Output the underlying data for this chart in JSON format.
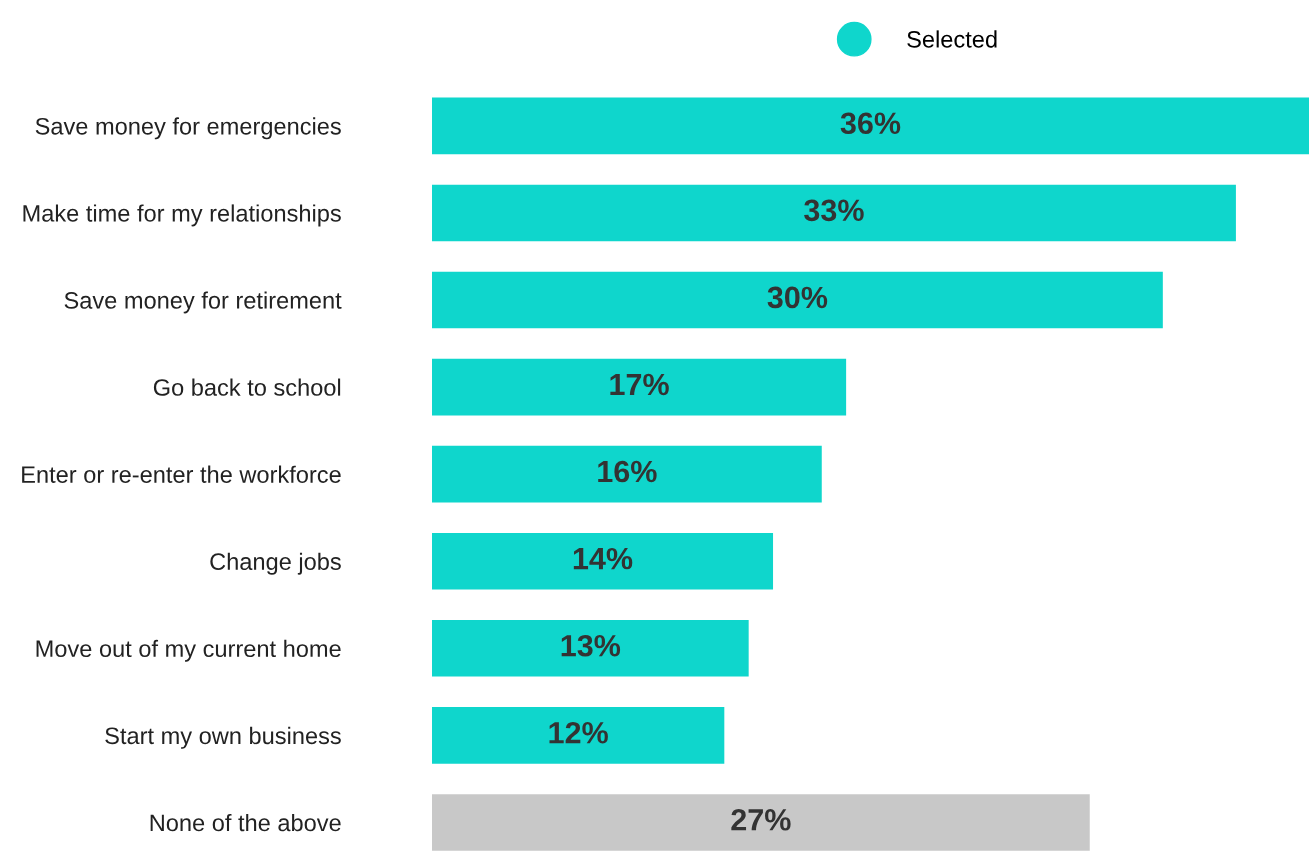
{
  "chart_data": {
    "type": "bar",
    "orientation": "horizontal",
    "legend": "top",
    "tick_labels": "y",
    "grid": false,
    "categories": [
      "Save money for emergencies",
      "Make time for my relationships",
      "Save money for retirement",
      "Go back to school",
      "Enter or re-enter the workforce",
      "Change jobs",
      "Move out of my current home",
      "Start my own business",
      "None of the above"
    ],
    "series": [
      {
        "name": "Selected",
        "color": "#0fd6cc",
        "colors": [
          "#0fd6cc",
          "#0fd6cc",
          "#0fd6cc",
          "#0fd6cc",
          "#0fd6cc",
          "#0fd6cc",
          "#0fd6cc",
          "#0fd6cc",
          "#c8c8c8"
        ],
        "values": [
          36,
          33,
          30,
          17,
          16,
          14,
          13,
          12,
          27
        ],
        "value_labels": [
          "36%",
          "33%",
          "30%",
          "17%",
          "16%",
          "14%",
          "13%",
          "12%",
          "27%"
        ]
      }
    ]
  }
}
